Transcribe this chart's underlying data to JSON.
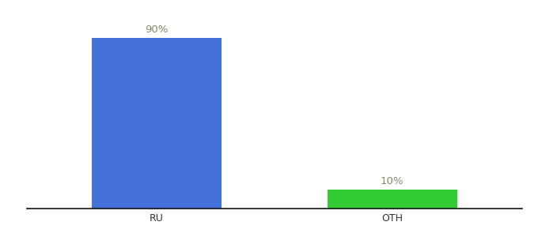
{
  "categories": [
    "RU",
    "OTH"
  ],
  "values": [
    90,
    10
  ],
  "bar_colors": [
    "#4472db",
    "#33cc33"
  ],
  "label_values": [
    "90%",
    "10%"
  ],
  "background_color": "#ffffff",
  "text_color": "#888866",
  "label_fontsize": 9.5,
  "tick_fontsize": 9,
  "ylim": [
    0,
    100
  ],
  "bar_width": 0.55,
  "spine_color": "#111111",
  "x_positions": [
    0,
    1
  ]
}
